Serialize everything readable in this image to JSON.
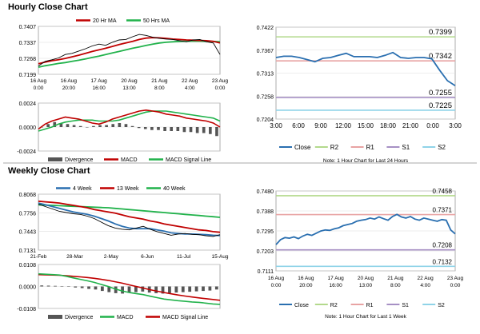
{
  "sections": {
    "hourly_title": "Hourly Close Chart",
    "weekly_title": "Weekly Close Chart"
  },
  "colors": {
    "ma_red": "#c00000",
    "ma_green": "#21b24b",
    "close_blue": "#2a6fb0",
    "r2": "#b3d98c",
    "r1": "#e8a3a3",
    "s1": "#a690c4",
    "s2": "#8fd3e8",
    "divergence": "#555555",
    "price_black": "#000000"
  },
  "chart_data": [
    {
      "id": "hourly_price",
      "type": "line",
      "legend": [
        "20 Hr MA",
        "50 Hrs MA"
      ],
      "y_ticks": [
        "0.7407",
        "0.7337",
        "0.7268",
        "0.7199"
      ],
      "ylim": [
        0.7199,
        0.7407
      ],
      "x_ticks": [
        [
          "16 Aug",
          "0:00"
        ],
        [
          "16 Aug",
          "20:00"
        ],
        [
          "17 Aug",
          "16:00"
        ],
        [
          "20 Aug",
          "13:00"
        ],
        [
          "21 Aug",
          "8:00"
        ],
        [
          "22 Aug",
          "4:00"
        ],
        [
          "23 Aug",
          "0:00"
        ]
      ],
      "series": [
        {
          "name": "Close",
          "values": [
            0.7235,
            0.7255,
            0.7262,
            0.727,
            0.7285,
            0.729,
            0.73,
            0.731,
            0.7322,
            0.733,
            0.7325,
            0.7338,
            0.7348,
            0.735,
            0.7362,
            0.7372,
            0.7368,
            0.736,
            0.7355,
            0.7352,
            0.735,
            0.7345,
            0.734,
            0.7348,
            0.735,
            0.734,
            0.7335,
            0.7285
          ]
        },
        {
          "name": "20 Hr MA",
          "values": [
            0.7245,
            0.7252,
            0.7258,
            0.7262,
            0.7268,
            0.7275,
            0.7282,
            0.729,
            0.7298,
            0.7305,
            0.7312,
            0.732,
            0.7328,
            0.7335,
            0.7342,
            0.735,
            0.7356,
            0.7358,
            0.7357,
            0.7355,
            0.7352,
            0.735,
            0.7348,
            0.7347,
            0.7346,
            0.7345,
            0.7342,
            0.7335
          ]
        },
        {
          "name": "50 Hrs MA",
          "values": [
            0.723,
            0.7236,
            0.7241,
            0.7246,
            0.725,
            0.7255,
            0.726,
            0.7266,
            0.7272,
            0.7278,
            0.7285,
            0.7292,
            0.7298,
            0.7305,
            0.7312,
            0.7318,
            0.7324,
            0.733,
            0.7335,
            0.7338,
            0.734,
            0.7342,
            0.7343,
            0.7343,
            0.7343,
            0.7342,
            0.7342,
            0.734
          ]
        }
      ]
    },
    {
      "id": "hourly_macd",
      "type": "line",
      "legend": [
        "Divergence",
        "MACD",
        "MACD Signal Line"
      ],
      "y_ticks": [
        "0.0024",
        "0.0000",
        "-0.0024"
      ],
      "ylim": [
        -0.0024,
        0.0024
      ],
      "series": [
        {
          "name": "Divergence",
          "values": [
            0.0,
            0.0003,
            0.0005,
            0.0004,
            0.0003,
            0.0002,
            0.0001,
            0.0,
            0.0001,
            0.0002,
            0.0002,
            0.0003,
            0.0004,
            0.0003,
            0.0001,
            -0.0001,
            -0.0002,
            -0.0003,
            -0.0003,
            -0.0004,
            -0.0004,
            -0.0004,
            -0.0005,
            -0.0005,
            -0.0006,
            -0.0006,
            -0.0007,
            -0.0009
          ]
        },
        {
          "name": "MACD",
          "values": [
            -0.0002,
            0.0003,
            0.0006,
            0.0008,
            0.001,
            0.0009,
            0.0008,
            0.0006,
            0.0004,
            0.0003,
            0.0005,
            0.0008,
            0.001,
            0.0012,
            0.0014,
            0.0016,
            0.0017,
            0.0016,
            0.0015,
            0.0013,
            0.0012,
            0.0011,
            0.0009,
            0.0008,
            0.0007,
            0.0006,
            0.0004,
            0.0
          ]
        },
        {
          "name": "MACD Signal Line",
          "values": [
            -0.0004,
            -0.0002,
            0.0,
            0.0003,
            0.0005,
            0.0006,
            0.0007,
            0.0007,
            0.0007,
            0.0006,
            0.0006,
            0.0006,
            0.0007,
            0.0009,
            0.0011,
            0.0013,
            0.0015,
            0.0016,
            0.0016,
            0.0016,
            0.0015,
            0.0014,
            0.0013,
            0.0012,
            0.0011,
            0.001,
            0.0009,
            0.0006
          ]
        }
      ]
    },
    {
      "id": "hourly_24h",
      "type": "line",
      "y_ticks": [
        "0.7422",
        "0.7367",
        "0.7313",
        "0.7258",
        "0.7204"
      ],
      "ylim": [
        0.7204,
        0.7422
      ],
      "x_ticks": [
        "3:00",
        "6:00",
        "9:00",
        "12:00",
        "15:00",
        "18:00",
        "21:00",
        "0:00",
        "3:00"
      ],
      "levels": [
        {
          "name": "R2",
          "value": 0.7399,
          "label": "0.7399"
        },
        {
          "name": "R1",
          "value": 0.7342,
          "label": "0.7342"
        },
        {
          "name": "S1",
          "value": 0.7255,
          "label": "0.7255"
        },
        {
          "name": "S2",
          "value": 0.7225,
          "label": "0.7225"
        }
      ],
      "series": [
        {
          "name": "Close",
          "values": [
            0.735,
            0.7353,
            0.7353,
            0.735,
            0.7345,
            0.734,
            0.7348,
            0.735,
            0.7355,
            0.736,
            0.7352,
            0.7352,
            0.7352,
            0.735,
            0.7355,
            0.7362,
            0.735,
            0.7348,
            0.735,
            0.735,
            0.7347,
            0.732,
            0.7295,
            0.7283
          ]
        }
      ],
      "legend": [
        "Close",
        "R2",
        "R1",
        "S1",
        "S2"
      ],
      "note": "Note: 1 Hour Chart for Last 24 Hours"
    },
    {
      "id": "weekly_price",
      "type": "line",
      "legend": [
        "4 Week",
        "13 Week",
        "40 Week"
      ],
      "y_ticks": [
        "0.8068",
        "0.7756",
        "0.7443",
        "0.7131"
      ],
      "ylim": [
        0.7131,
        0.8068
      ],
      "x_ticks": [
        "21-Feb",
        "28-Mar",
        "2-May",
        "6-Jun",
        "11-Jul",
        "15-Aug"
      ],
      "series": [
        {
          "name": "Close",
          "values": [
            0.79,
            0.786,
            0.782,
            0.778,
            0.776,
            0.774,
            0.773,
            0.77,
            0.766,
            0.76,
            0.754,
            0.75,
            0.748,
            0.747,
            0.75,
            0.753,
            0.748,
            0.744,
            0.741,
            0.738,
            0.74,
            0.741,
            0.7395,
            0.739,
            0.737,
            0.736,
            0.739
          ]
        },
        {
          "name": "4 Week",
          "values": [
            0.792,
            0.789,
            0.786,
            0.783,
            0.78,
            0.777,
            0.775,
            0.773,
            0.77,
            0.766,
            0.762,
            0.757,
            0.753,
            0.75,
            0.749,
            0.749,
            0.749,
            0.747,
            0.745,
            0.742,
            0.741,
            0.74,
            0.74,
            0.7395,
            0.739,
            0.738,
            0.7375
          ]
        },
        {
          "name": "13 Week",
          "values": [
            0.795,
            0.794,
            0.793,
            0.792,
            0.79,
            0.788,
            0.786,
            0.784,
            0.781,
            0.779,
            0.777,
            0.775,
            0.772,
            0.769,
            0.767,
            0.765,
            0.762,
            0.76,
            0.757,
            0.755,
            0.753,
            0.751,
            0.749,
            0.747,
            0.746,
            0.744,
            0.743
          ]
        },
        {
          "name": "40 Week",
          "values": [
            0.789,
            0.7885,
            0.788,
            0.7875,
            0.787,
            0.7865,
            0.786,
            0.7855,
            0.785,
            0.7845,
            0.784,
            0.783,
            0.782,
            0.781,
            0.78,
            0.779,
            0.778,
            0.777,
            0.776,
            0.775,
            0.774,
            0.773,
            0.772,
            0.771,
            0.77,
            0.769,
            0.768
          ]
        }
      ]
    },
    {
      "id": "weekly_macd",
      "type": "line",
      "legend": [
        "Divergence",
        "MACD",
        "MACD Signal Line"
      ],
      "y_ticks": [
        "0.0108",
        "0.0000",
        "-0.0108"
      ],
      "ylim": [
        -0.0108,
        0.0108
      ],
      "series": [
        {
          "name": "Divergence",
          "values": [
            0.0005,
            0.0004,
            0.0003,
            0.0002,
            0.0,
            -0.0005,
            -0.0008,
            -0.0012,
            -0.0015,
            -0.0022,
            -0.0028,
            -0.0033,
            -0.0035,
            -0.003,
            -0.0028,
            -0.0025,
            -0.003,
            -0.0033,
            -0.0035,
            -0.0033,
            -0.003,
            -0.0028,
            -0.0026,
            -0.0024,
            -0.0022,
            -0.002,
            -0.0015
          ]
        },
        {
          "name": "MACD",
          "values": [
            0.0062,
            0.006,
            0.0058,
            0.0056,
            0.005,
            0.0042,
            0.0035,
            0.0028,
            0.002,
            0.001,
            0.0,
            -0.0012,
            -0.0022,
            -0.003,
            -0.0035,
            -0.004,
            -0.0048,
            -0.0055,
            -0.0062,
            -0.0066,
            -0.007,
            -0.0073,
            -0.0076,
            -0.0078,
            -0.0082,
            -0.0086,
            -0.0088
          ]
        },
        {
          "name": "MACD Signal Line",
          "values": [
            0.0058,
            0.0057,
            0.0056,
            0.0055,
            0.0053,
            0.005,
            0.0047,
            0.0044,
            0.004,
            0.0035,
            0.003,
            0.0023,
            0.0016,
            0.0008,
            0.0,
            -0.0008,
            -0.0016,
            -0.0023,
            -0.003,
            -0.0036,
            -0.0042,
            -0.0047,
            -0.0052,
            -0.0056,
            -0.006,
            -0.0064,
            -0.0068
          ]
        }
      ]
    },
    {
      "id": "weekly_1w",
      "type": "line",
      "y_ticks": [
        "0.7480",
        "0.7388",
        "0.7295",
        "0.7203",
        "0.7111"
      ],
      "ylim": [
        0.7111,
        0.748
      ],
      "x_ticks": [
        [
          "16 Aug",
          "0:00"
        ],
        [
          "16 Aug",
          "20:00"
        ],
        [
          "17 Aug",
          "16:00"
        ],
        [
          "20 Aug",
          "13:00"
        ],
        [
          "21 Aug",
          "8:00"
        ],
        [
          "22 Aug",
          "4:00"
        ],
        [
          "23 Aug",
          "0:00"
        ]
      ],
      "levels": [
        {
          "name": "R2",
          "value": 0.7458,
          "label": "0.7458"
        },
        {
          "name": "R1",
          "value": 0.7371,
          "label": "0.7371"
        },
        {
          "name": "S1",
          "value": 0.7208,
          "label": "0.7208"
        },
        {
          "name": "S2",
          "value": 0.7132,
          "label": "0.7132"
        }
      ],
      "series": [
        {
          "name": "Close",
          "values": [
            0.7232,
            0.7255,
            0.7265,
            0.7262,
            0.7268,
            0.726,
            0.7272,
            0.728,
            0.7275,
            0.7285,
            0.7295,
            0.73,
            0.7298,
            0.7305,
            0.731,
            0.732,
            0.7325,
            0.733,
            0.734,
            0.7345,
            0.7348,
            0.7355,
            0.735,
            0.736,
            0.7352,
            0.7345,
            0.7362,
            0.7372,
            0.736,
            0.7355,
            0.7362,
            0.735,
            0.7345,
            0.7355,
            0.735,
            0.7345,
            0.734,
            0.7348,
            0.7345,
            0.73,
            0.7282
          ]
        }
      ],
      "legend": [
        "Close",
        "R2",
        "R1",
        "S1",
        "S2"
      ],
      "note": "Note: 1 Hour Chart for Last 1 Week"
    }
  ]
}
